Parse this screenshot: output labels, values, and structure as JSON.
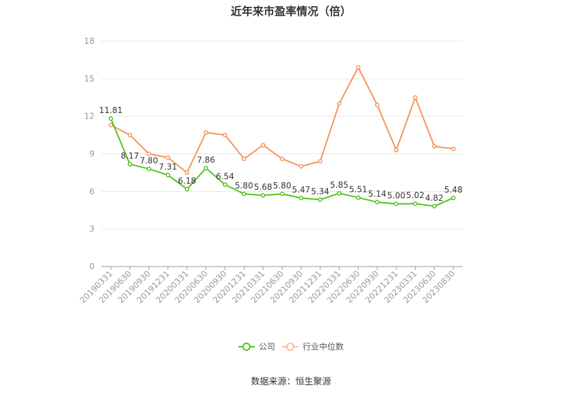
{
  "chart_data": {
    "type": "line",
    "title": "近年来市盈率情况（倍）",
    "categories": [
      "20190331",
      "20190630",
      "20190930",
      "20191231",
      "20200331",
      "20200630",
      "20200930",
      "20201231",
      "20210331",
      "20210630",
      "20210930",
      "20211231",
      "20220331",
      "20220630",
      "20220930",
      "20221231",
      "20230331",
      "20230630",
      "20230830"
    ],
    "series": [
      {
        "name": "公司",
        "color": "#52c41a",
        "values": [
          11.81,
          8.17,
          7.8,
          7.31,
          6.18,
          7.86,
          6.54,
          5.8,
          5.68,
          5.8,
          5.47,
          5.34,
          5.85,
          5.51,
          5.14,
          5.0,
          5.02,
          4.82,
          5.48
        ],
        "labels": [
          "11.81",
          "8.17",
          "7.80",
          "7.31",
          "6.18",
          "7.86",
          "6.54",
          "5.80",
          "5.68",
          "5.80",
          "5.47",
          "5.34",
          "5.85",
          "5.51",
          "5.14",
          "5.00",
          "5.02",
          "4.82",
          "5.48"
        ]
      },
      {
        "name": "行业中位数",
        "color": "#f5945c",
        "values": [
          11.3,
          10.5,
          9.0,
          8.7,
          7.5,
          10.7,
          10.5,
          8.6,
          9.7,
          8.6,
          8.0,
          8.4,
          13.0,
          15.9,
          12.9,
          9.3,
          13.5,
          9.6,
          9.4
        ]
      }
    ],
    "yticks": [
      "0",
      "3",
      "6",
      "9",
      "12",
      "15",
      "18"
    ],
    "ylim": [
      0,
      18
    ],
    "grid": true,
    "legend_position": "bottom"
  },
  "source_text": "数据来源：恒生聚源"
}
